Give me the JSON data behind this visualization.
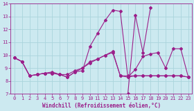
{
  "xlabel": "Windchill (Refroidissement éolien,°C)",
  "background_color": "#cce9f0",
  "line_color": "#9b1f8a",
  "grid_color": "#aad4dc",
  "xlim": [
    -0.5,
    23.5
  ],
  "ylim": [
    7,
    14
  ],
  "yticks": [
    7,
    8,
    9,
    10,
    11,
    12,
    13,
    14
  ],
  "xticks": [
    0,
    1,
    2,
    3,
    4,
    5,
    6,
    7,
    8,
    9,
    10,
    11,
    12,
    13,
    14,
    15,
    16,
    17,
    18,
    19,
    20,
    21,
    22,
    23
  ],
  "series": [
    {
      "x": [
        0,
        1,
        2,
        3,
        4,
        5,
        6,
        7,
        8,
        9,
        10,
        11,
        12,
        13,
        14,
        15,
        16,
        17,
        18,
        19,
        20,
        21,
        22,
        23
      ],
      "y": [
        9.8,
        9.5,
        8.4,
        8.5,
        8.6,
        8.6,
        8.5,
        8.3,
        8.7,
        8.8,
        10.7,
        11.7,
        12.7,
        13.5,
        13.4,
        8.3,
        8.9,
        9.9,
        10.1,
        10.2,
        9.0,
        10.5,
        10.5,
        8.3
      ]
    },
    {
      "x": [
        0,
        1,
        2,
        3,
        4,
        5,
        6,
        7,
        8,
        9,
        10,
        11,
        12,
        13,
        14,
        15,
        16,
        17,
        18,
        19,
        20,
        21,
        22,
        23
      ],
      "y": [
        9.8,
        9.5,
        8.4,
        8.5,
        8.6,
        8.6,
        8.5,
        8.3,
        8.7,
        9.0,
        9.4,
        9.7,
        10.0,
        10.2,
        8.4,
        8.3,
        8.4,
        8.4,
        8.4,
        8.4,
        8.4,
        8.4,
        8.4,
        8.3
      ]
    },
    {
      "x": [
        15,
        16,
        17,
        18
      ],
      "y": [
        7.0,
        13.1,
        10.2,
        13.7
      ]
    },
    {
      "x": [
        0,
        1,
        2,
        3,
        4,
        5,
        6,
        7,
        8,
        9,
        10,
        11,
        12,
        13,
        14,
        15,
        16,
        17,
        18,
        19,
        20,
        21,
        22,
        23
      ],
      "y": [
        9.8,
        9.5,
        8.4,
        8.5,
        8.6,
        8.7,
        8.5,
        8.5,
        8.8,
        9.0,
        9.5,
        9.7,
        10.0,
        10.3,
        8.4,
        8.4,
        8.4,
        8.4,
        8.4,
        8.4,
        8.4,
        8.4,
        8.4,
        8.3
      ]
    }
  ],
  "xlabel_fontsize": 5.5,
  "tick_fontsize": 5.0
}
